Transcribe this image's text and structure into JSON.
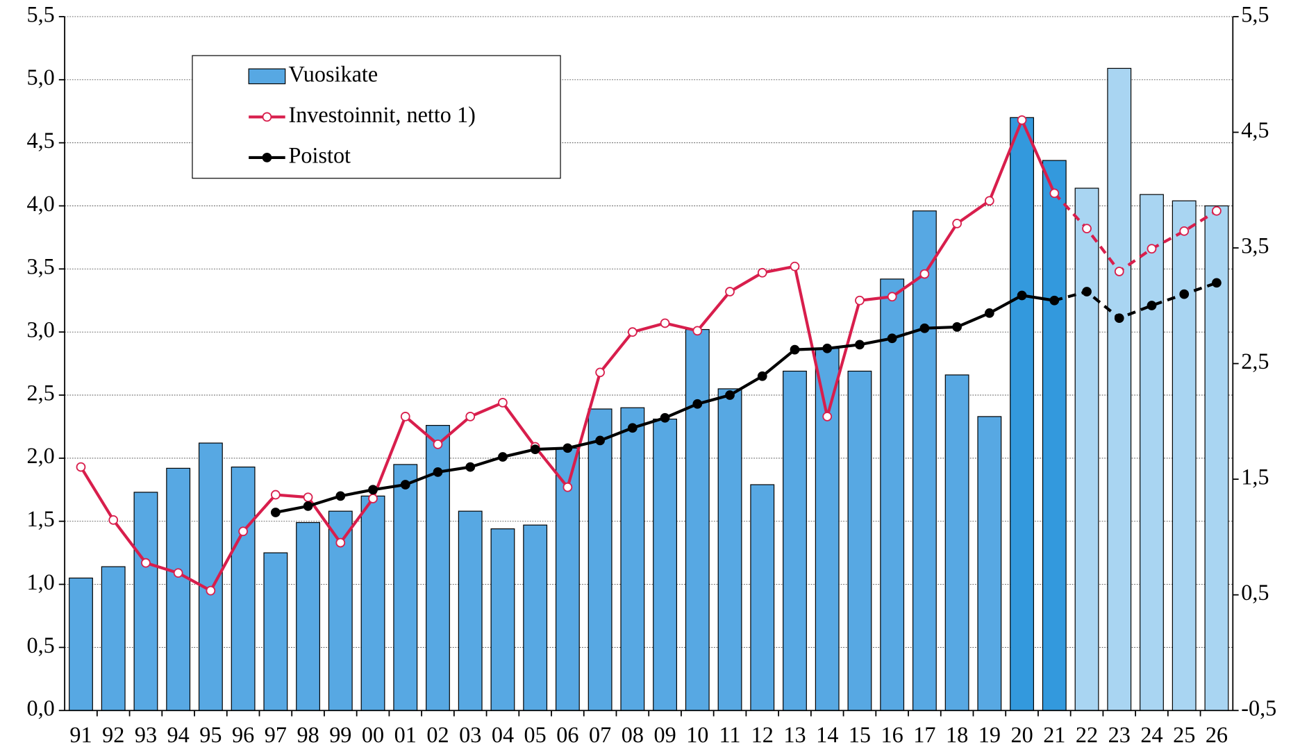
{
  "chart_data": {
    "type": "combo",
    "categories": [
      "91",
      "92",
      "93",
      "94",
      "95",
      "96",
      "97",
      "98",
      "99",
      "00",
      "01",
      "02",
      "03",
      "04",
      "05",
      "06",
      "07",
      "08",
      "09",
      "10",
      "11",
      "12",
      "13",
      "14",
      "15",
      "16",
      "17",
      "18",
      "19",
      "20",
      "21",
      "22",
      "23",
      "24",
      "25",
      "26"
    ],
    "series": [
      {
        "name": "Vuosikate",
        "type": "bar",
        "color": "#57a8e3",
        "colors": [
          "#57a8e3",
          "#57a8e3",
          "#57a8e3",
          "#57a8e3",
          "#57a8e3",
          "#57a8e3",
          "#57a8e3",
          "#57a8e3",
          "#57a8e3",
          "#57a8e3",
          "#57a8e3",
          "#57a8e3",
          "#57a8e3",
          "#57a8e3",
          "#57a8e3",
          "#57a8e3",
          "#57a8e3",
          "#57a8e3",
          "#57a8e3",
          "#57a8e3",
          "#57a8e3",
          "#57a8e3",
          "#57a8e3",
          "#57a8e3",
          "#57a8e3",
          "#57a8e3",
          "#57a8e3",
          "#57a8e3",
          "#57a8e3",
          "#3399dd",
          "#3399dd",
          "#a9d5f2",
          "#a9d5f2",
          "#a9d5f2",
          "#a9d5f2",
          "#a9d5f2"
        ],
        "values": [
          1.05,
          1.14,
          1.73,
          1.92,
          2.12,
          1.93,
          1.25,
          1.49,
          1.58,
          1.7,
          1.95,
          2.26,
          1.58,
          1.44,
          1.47,
          2.08,
          2.39,
          2.4,
          2.31,
          3.02,
          2.55,
          1.79,
          2.69,
          2.87,
          2.69,
          3.42,
          3.96,
          2.66,
          2.33,
          4.7,
          4.36,
          4.14,
          5.09,
          4.09,
          4.04,
          4.0
        ]
      },
      {
        "name": "Investoinnit, netto 1)",
        "type": "line",
        "color": "#d81e4c",
        "marker": "open",
        "dashed_from": "21",
        "values": [
          1.93,
          1.51,
          1.17,
          1.09,
          0.95,
          1.42,
          1.71,
          1.69,
          1.33,
          1.68,
          2.33,
          2.11,
          2.33,
          2.44,
          2.09,
          1.77,
          2.68,
          3.0,
          3.07,
          3.01,
          3.32,
          3.47,
          3.52,
          2.33,
          3.25,
          3.28,
          3.46,
          3.86,
          4.04,
          4.68,
          4.1,
          3.82,
          3.48,
          3.66,
          3.8,
          3.96
        ]
      },
      {
        "name": "Poistot",
        "type": "line",
        "color": "#000000",
        "marker": "filled",
        "dashed_from": "21",
        "values": [
          null,
          null,
          null,
          null,
          null,
          null,
          1.57,
          1.62,
          1.7,
          1.75,
          1.79,
          1.89,
          1.93,
          2.01,
          2.07,
          2.08,
          2.14,
          2.24,
          2.32,
          2.43,
          2.5,
          2.65,
          2.86,
          2.87,
          2.9,
          2.95,
          3.03,
          3.04,
          3.15,
          3.29,
          3.25,
          3.32,
          3.11,
          3.21,
          3.3,
          3.39
        ]
      }
    ],
    "ylim": [
      0,
      5.5
    ],
    "yticks": [
      {
        "value": 0,
        "label": "0,0"
      },
      {
        "value": 0.5,
        "label": "0,5"
      },
      {
        "value": 1,
        "label": "1,0"
      },
      {
        "value": 1.5,
        "label": "1,5"
      },
      {
        "value": 2,
        "label": "2,0"
      },
      {
        "value": 2.5,
        "label": "2,5"
      },
      {
        "value": 3,
        "label": "3,0"
      },
      {
        "value": 3.5,
        "label": "3,5"
      },
      {
        "value": 4,
        "label": "4,0"
      },
      {
        "value": 4.5,
        "label": "4,5"
      },
      {
        "value": 5,
        "label": "5,0"
      },
      {
        "value": 5.5,
        "label": "5,5"
      }
    ],
    "y2lim": [
      -0.5,
      5.5
    ],
    "y2ticks": [
      {
        "value": -0.5,
        "label": "-0,5"
      },
      {
        "value": 0.5,
        "label": "0,5"
      },
      {
        "value": 1.5,
        "label": "1,5"
      },
      {
        "value": 2.5,
        "label": "2,5"
      },
      {
        "value": 3.5,
        "label": "3,5"
      },
      {
        "value": 4.5,
        "label": "4,5"
      },
      {
        "value": 5.5,
        "label": "5,5"
      }
    ],
    "grid": true,
    "legend": "top-left"
  }
}
